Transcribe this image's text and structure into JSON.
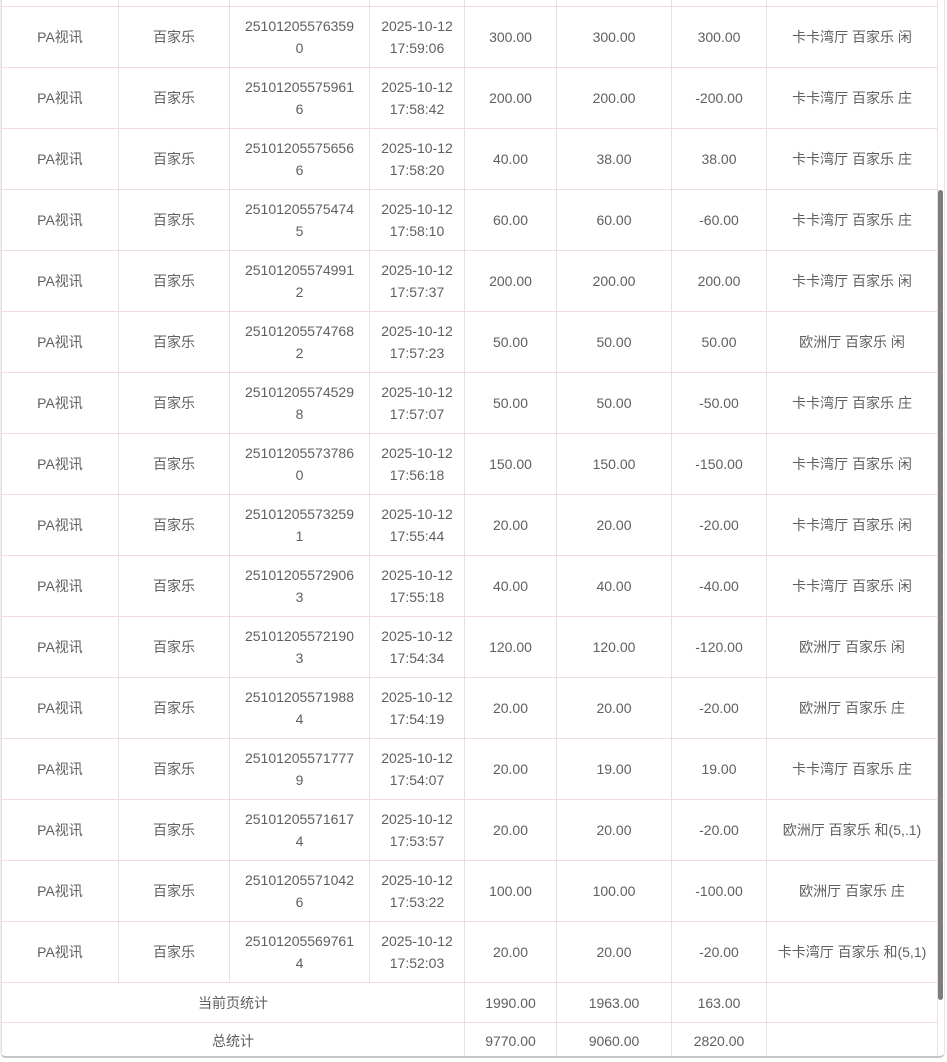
{
  "colors": {
    "grid_border": "#f1dcdc",
    "text": "#5f5f5f",
    "scrollbar_thumb": "#7d7d7d",
    "container_bottom_border": "#c6c6c6"
  },
  "table": {
    "rows": [
      {
        "platform": "PA视讯",
        "game": "百家乐",
        "order_no": "251012055763590",
        "bet_time": "2025-10-12 17:59:06",
        "bet_amount": "300.00",
        "valid_amount": "300.00",
        "win_loss": "300.00",
        "detail": "卡卡湾厅 百家乐 闲"
      },
      {
        "platform": "PA视讯",
        "game": "百家乐",
        "order_no": "251012055759616",
        "bet_time": "2025-10-12 17:58:42",
        "bet_amount": "200.00",
        "valid_amount": "200.00",
        "win_loss": "-200.00",
        "detail": "卡卡湾厅 百家乐 庄"
      },
      {
        "platform": "PA视讯",
        "game": "百家乐",
        "order_no": "251012055756566",
        "bet_time": "2025-10-12 17:58:20",
        "bet_amount": "40.00",
        "valid_amount": "38.00",
        "win_loss": "38.00",
        "detail": "卡卡湾厅 百家乐 庄"
      },
      {
        "platform": "PA视讯",
        "game": "百家乐",
        "order_no": "251012055754745",
        "bet_time": "2025-10-12 17:58:10",
        "bet_amount": "60.00",
        "valid_amount": "60.00",
        "win_loss": "-60.00",
        "detail": "卡卡湾厅 百家乐 庄"
      },
      {
        "platform": "PA视讯",
        "game": "百家乐",
        "order_no": "251012055749912",
        "bet_time": "2025-10-12 17:57:37",
        "bet_amount": "200.00",
        "valid_amount": "200.00",
        "win_loss": "200.00",
        "detail": "卡卡湾厅 百家乐 闲"
      },
      {
        "platform": "PA视讯",
        "game": "百家乐",
        "order_no": "251012055747682",
        "bet_time": "2025-10-12 17:57:23",
        "bet_amount": "50.00",
        "valid_amount": "50.00",
        "win_loss": "50.00",
        "detail": "欧洲厅 百家乐 闲"
      },
      {
        "platform": "PA视讯",
        "game": "百家乐",
        "order_no": "251012055745298",
        "bet_time": "2025-10-12 17:57:07",
        "bet_amount": "50.00",
        "valid_amount": "50.00",
        "win_loss": "-50.00",
        "detail": "卡卡湾厅 百家乐 庄"
      },
      {
        "platform": "PA视讯",
        "game": "百家乐",
        "order_no": "251012055737860",
        "bet_time": "2025-10-12 17:56:18",
        "bet_amount": "150.00",
        "valid_amount": "150.00",
        "win_loss": "-150.00",
        "detail": "卡卡湾厅 百家乐 闲"
      },
      {
        "platform": "PA视讯",
        "game": "百家乐",
        "order_no": "251012055732591",
        "bet_time": "2025-10-12 17:55:44",
        "bet_amount": "20.00",
        "valid_amount": "20.00",
        "win_loss": "-20.00",
        "detail": "卡卡湾厅 百家乐 闲"
      },
      {
        "platform": "PA视讯",
        "game": "百家乐",
        "order_no": "251012055729063",
        "bet_time": "2025-10-12 17:55:18",
        "bet_amount": "40.00",
        "valid_amount": "40.00",
        "win_loss": "-40.00",
        "detail": "卡卡湾厅 百家乐 闲"
      },
      {
        "platform": "PA视讯",
        "game": "百家乐",
        "order_no": "251012055721903",
        "bet_time": "2025-10-12 17:54:34",
        "bet_amount": "120.00",
        "valid_amount": "120.00",
        "win_loss": "-120.00",
        "detail": "欧洲厅 百家乐 闲"
      },
      {
        "platform": "PA视讯",
        "game": "百家乐",
        "order_no": "251012055719884",
        "bet_time": "2025-10-12 17:54:19",
        "bet_amount": "20.00",
        "valid_amount": "20.00",
        "win_loss": "-20.00",
        "detail": "欧洲厅 百家乐 庄"
      },
      {
        "platform": "PA视讯",
        "game": "百家乐",
        "order_no": "251012055717779",
        "bet_time": "2025-10-12 17:54:07",
        "bet_amount": "20.00",
        "valid_amount": "19.00",
        "win_loss": "19.00",
        "detail": "卡卡湾厅 百家乐 庄"
      },
      {
        "platform": "PA视讯",
        "game": "百家乐",
        "order_no": "251012055716174",
        "bet_time": "2025-10-12 17:53:57",
        "bet_amount": "20.00",
        "valid_amount": "20.00",
        "win_loss": "-20.00",
        "detail": "欧洲厅 百家乐 和(5,.1)"
      },
      {
        "platform": "PA视讯",
        "game": "百家乐",
        "order_no": "251012055710426",
        "bet_time": "2025-10-12 17:53:22",
        "bet_amount": "100.00",
        "valid_amount": "100.00",
        "win_loss": "-100.00",
        "detail": "欧洲厅 百家乐 庄"
      },
      {
        "platform": "PA视讯",
        "game": "百家乐",
        "order_no": "251012055697614",
        "bet_time": "2025-10-12 17:52:03",
        "bet_amount": "20.00",
        "valid_amount": "20.00",
        "win_loss": "-20.00",
        "detail": "卡卡湾厅 百家乐 和(5,1)"
      }
    ],
    "page_summary": {
      "label": "当前页统计",
      "bet_amount": "1990.00",
      "valid_amount": "1963.00",
      "win_loss": "163.00"
    },
    "total_summary": {
      "label": "总统计",
      "bet_amount": "9770.00",
      "valid_amount": "9060.00",
      "win_loss": "2820.00"
    }
  }
}
